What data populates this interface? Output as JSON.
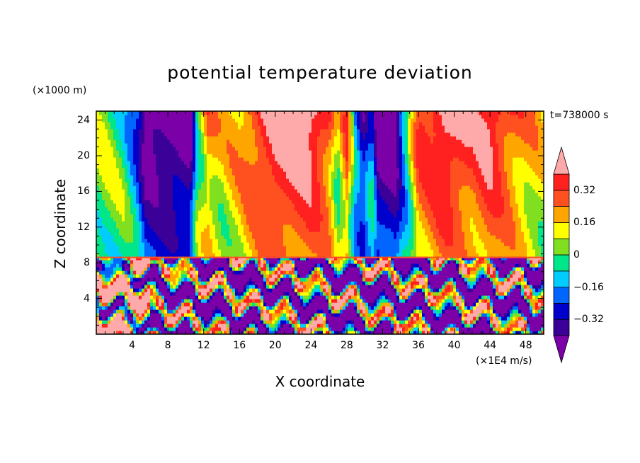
{
  "chart_data": {
    "type": "heatmap",
    "title": "potential temperature deviation",
    "xlabel": "X coordinate",
    "ylabel": "Z coordinate",
    "x_unit": "(×1E4 m/s)",
    "z_unit": "(×1000 m)",
    "time_label": "t=738000 s",
    "xlim": [
      0,
      50
    ],
    "ylim": [
      0,
      25
    ],
    "x_ticks": [
      4,
      8,
      12,
      16,
      20,
      24,
      28,
      32,
      36,
      40,
      44,
      48
    ],
    "y_ticks": [
      4,
      8,
      12,
      16,
      20,
      24
    ],
    "x_tick_labels": [
      "4",
      "8",
      "12",
      "16",
      "20",
      "24",
      "28",
      "32",
      "36",
      "40",
      "44",
      "48"
    ],
    "y_tick_labels": [
      "4",
      "8",
      "12",
      "16",
      "20",
      "24"
    ],
    "colorbar": {
      "levels": [
        -0.4,
        -0.32,
        -0.24,
        -0.16,
        -0.08,
        0,
        0.08,
        0.16,
        0.24,
        0.32,
        0.4
      ],
      "colors": [
        "#7b00a8",
        "#3a0098",
        "#0000cc",
        "#0066ff",
        "#00ccff",
        "#00e68a",
        "#80e020",
        "#ffff00",
        "#ffa500",
        "#ff5020",
        "#ff2020",
        "#ffaaaa"
      ],
      "tick_values": [
        -0.32,
        -0.16,
        0,
        0.16,
        0.32
      ],
      "tick_labels": [
        "−0.32",
        "−0.16",
        "0",
        "0.16",
        "0.32"
      ]
    },
    "upper_layer_profile": [
      {
        "x": 1,
        "value": 0.04
      },
      {
        "x": 3,
        "value": -0.02
      },
      {
        "x": 4.5,
        "value": -0.2
      },
      {
        "x": 5.5,
        "value": -0.45
      },
      {
        "x": 8,
        "value": -0.45
      },
      {
        "x": 10.5,
        "value": -0.45
      },
      {
        "x": 11.3,
        "value": 0.0
      },
      {
        "x": 12.5,
        "value": 0.22
      },
      {
        "x": 14,
        "value": 0.12
      },
      {
        "x": 16,
        "value": 0.2
      },
      {
        "x": 18,
        "value": 0.34
      },
      {
        "x": 20,
        "value": 0.45
      },
      {
        "x": 24,
        "value": 0.45
      },
      {
        "x": 26,
        "value": 0.3
      },
      {
        "x": 27,
        "value": 0.05
      },
      {
        "x": 28,
        "value": 0.3
      },
      {
        "x": 29,
        "value": -0.2
      },
      {
        "x": 29.8,
        "value": -0.35
      },
      {
        "x": 30.8,
        "value": -0.15
      },
      {
        "x": 31.5,
        "value": -0.45
      },
      {
        "x": 33.5,
        "value": -0.45
      },
      {
        "x": 35,
        "value": 0.0
      },
      {
        "x": 36,
        "value": 0.3
      },
      {
        "x": 37.5,
        "value": 0.36
      },
      {
        "x": 39,
        "value": 0.45
      },
      {
        "x": 42,
        "value": 0.34
      },
      {
        "x": 44,
        "value": 0.42
      },
      {
        "x": 46,
        "value": 0.3
      },
      {
        "x": 48,
        "value": 0.2
      },
      {
        "x": 50,
        "value": 0.12
      }
    ],
    "lower_layer_top": 8.6
  }
}
